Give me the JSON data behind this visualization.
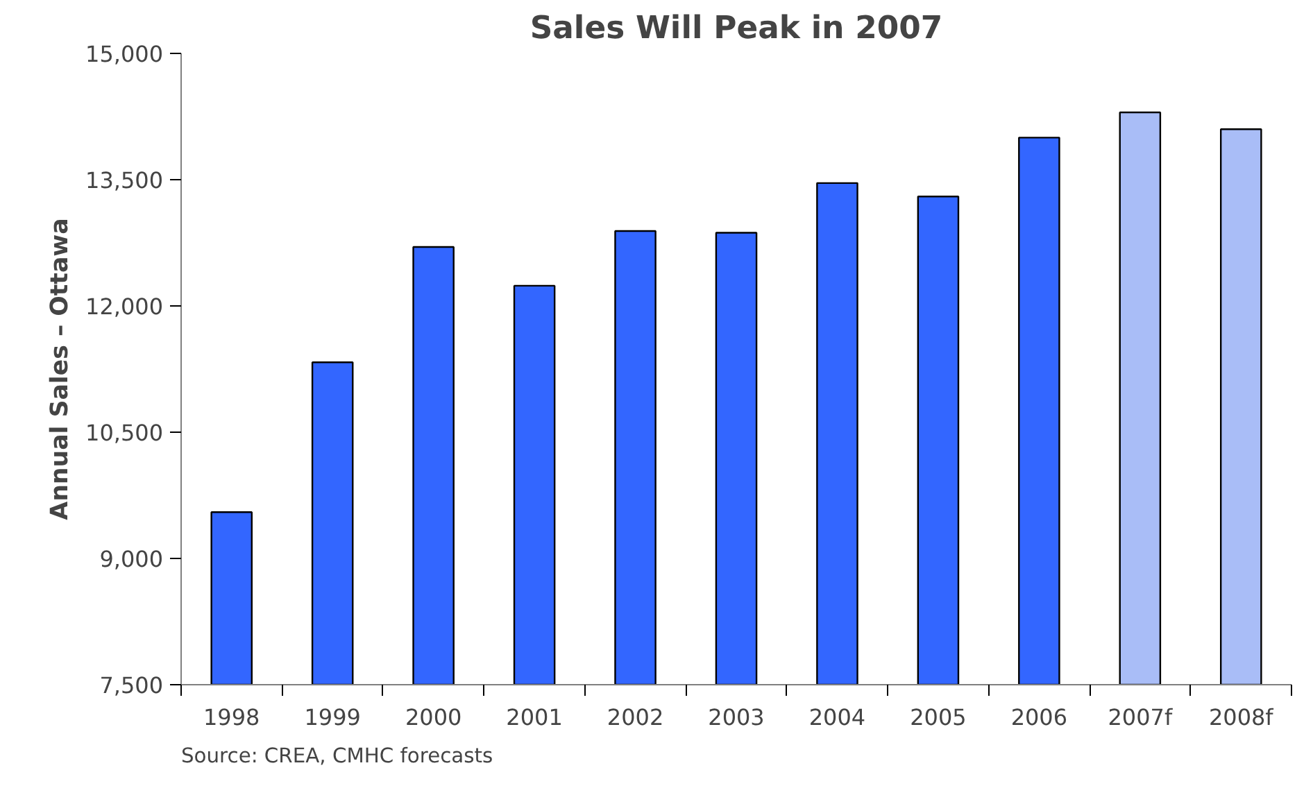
{
  "chart_data": {
    "type": "bar",
    "title": "Sales Will Peak in 2007",
    "ylabel": "Annual Sales – Ottawa",
    "categories": [
      "1998",
      "1999",
      "2000",
      "2001",
      "2002",
      "2003",
      "2004",
      "2005",
      "2006",
      "2007f",
      "2008f"
    ],
    "values": [
      9550,
      11330,
      12700,
      12240,
      12890,
      12870,
      13460,
      13300,
      14000,
      14300,
      14100
    ],
    "colors": [
      "#3366ff",
      "#3366ff",
      "#3366ff",
      "#3366ff",
      "#3366ff",
      "#3366ff",
      "#3366ff",
      "#3366ff",
      "#3366ff",
      "#a9bdf7",
      "#a9bdf7"
    ],
    "ylim": [
      7500,
      15000
    ],
    "yticks": [
      {
        "value": 7500,
        "label": "7,500"
      },
      {
        "value": 9000,
        "label": "9,000"
      },
      {
        "value": 10500,
        "label": "10,500"
      },
      {
        "value": 12000,
        "label": "12,000"
      },
      {
        "value": 13500,
        "label": "13,500"
      },
      {
        "value": 15000,
        "label": "15,000"
      }
    ],
    "grid": false,
    "annotations": [
      "Source: CREA, CMHC forecasts"
    ]
  }
}
